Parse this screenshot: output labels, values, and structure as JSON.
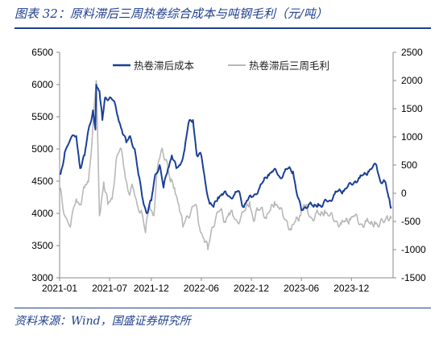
{
  "header": {
    "title": "图表 32：原料滞后三周热卷综合成本与吨钢毛利（元/吨）"
  },
  "footer": {
    "source": "资料来源：Wind，国盛证券研究所"
  },
  "colors": {
    "accent": "#1f3f8f",
    "cost_series": "#1a3f97",
    "margin_series": "#b8b8b8"
  },
  "chart_data": {
    "type": "line",
    "title": "",
    "legend_position": "top",
    "grid": false,
    "x_tick_labels": [
      "2021-01",
      "2021-07",
      "2021-12",
      "2022-06",
      "2022-12",
      "2023-06",
      "2023-12"
    ],
    "x_range": [
      "2021-01",
      "2024-05"
    ],
    "y_left": {
      "range": [
        3000,
        6500
      ],
      "ticks": [
        "6500",
        "6000",
        "5500",
        "5000",
        "4500",
        "4000",
        "3500",
        "3000"
      ]
    },
    "y_right": {
      "range": [
        -1500,
        2500
      ],
      "ticks": [
        "2500",
        "2000",
        "1500",
        "1000",
        "500",
        "0",
        "-500",
        "-1000",
        "-1500"
      ]
    },
    "series": [
      {
        "name": "热卷滞后成本",
        "axis": "left",
        "x": [
          "2021-01-04",
          "2021-01-20",
          "2021-02-10",
          "2021-03-01",
          "2021-03-15",
          "2021-04-01",
          "2021-04-15",
          "2021-05-01",
          "2021-05-10",
          "2021-05-13",
          "2021-05-25",
          "2021-06-05",
          "2021-06-15",
          "2021-07-01",
          "2021-07-15",
          "2021-08-01",
          "2021-08-15",
          "2021-09-01",
          "2021-09-15",
          "2021-10-01",
          "2021-10-15",
          "2021-11-01",
          "2021-11-15",
          "2021-12-01",
          "2021-12-15",
          "2022-01-01",
          "2022-01-15",
          "2022-02-01",
          "2022-02-15",
          "2022-03-01",
          "2022-03-15",
          "2022-04-01",
          "2022-04-15",
          "2022-05-01",
          "2022-05-15",
          "2022-06-01",
          "2022-06-15",
          "2022-07-01",
          "2022-07-15",
          "2022-08-01",
          "2022-08-15",
          "2022-09-01",
          "2022-09-15",
          "2022-10-01",
          "2022-10-15",
          "2022-11-01",
          "2022-11-15",
          "2022-12-01",
          "2022-12-15",
          "2023-01-01",
          "2023-01-15",
          "2023-02-01",
          "2023-02-15",
          "2023-03-01",
          "2023-03-15",
          "2023-04-01",
          "2023-04-15",
          "2023-05-01",
          "2023-05-15",
          "2023-06-01",
          "2023-06-15",
          "2023-07-01",
          "2023-07-15",
          "2023-08-01",
          "2023-08-15",
          "2023-09-01",
          "2023-09-15",
          "2023-10-01",
          "2023-10-15",
          "2023-11-01",
          "2023-11-15",
          "2023-12-01",
          "2023-12-15",
          "2024-01-01",
          "2024-01-15",
          "2024-02-01",
          "2024-02-15",
          "2024-03-01",
          "2024-03-15",
          "2024-04-01",
          "2024-04-15",
          "2024-04-25"
        ],
        "values": [
          4600,
          4950,
          5150,
          5200,
          4700,
          4900,
          5300,
          5600,
          5300,
          6000,
          5900,
          5450,
          5800,
          5800,
          5750,
          5500,
          5300,
          5100,
          5200,
          5000,
          4600,
          4200,
          4000,
          4200,
          4600,
          4750,
          4400,
          4700,
          4900,
          4700,
          4750,
          5000,
          5400,
          5450,
          4900,
          4900,
          4500,
          4150,
          4100,
          4250,
          4300,
          4300,
          4250,
          4300,
          4350,
          4100,
          4200,
          4250,
          4300,
          4400,
          4500,
          4600,
          4650,
          4650,
          4550,
          4650,
          4700,
          4650,
          4300,
          4050,
          4100,
          4150,
          4100,
          4150,
          4100,
          4200,
          4200,
          4300,
          4350,
          4350,
          4400,
          4450,
          4500,
          4550,
          4600,
          4650,
          4700,
          4750,
          4500,
          4500,
          4250,
          4100
        ]
      },
      {
        "name": "热卷滞后三周毛利",
        "axis": "right",
        "x": [
          "2021-01-04",
          "2021-01-20",
          "2021-02-10",
          "2021-03-01",
          "2021-03-15",
          "2021-04-01",
          "2021-04-15",
          "2021-05-01",
          "2021-05-13",
          "2021-05-25",
          "2021-06-10",
          "2021-06-25",
          "2021-07-10",
          "2021-07-25",
          "2021-08-10",
          "2021-08-25",
          "2021-09-10",
          "2021-09-25",
          "2021-10-10",
          "2021-10-25",
          "2021-11-10",
          "2021-11-25",
          "2021-12-10",
          "2021-12-25",
          "2022-01-10",
          "2022-01-25",
          "2022-02-10",
          "2022-02-25",
          "2022-03-10",
          "2022-03-25",
          "2022-04-10",
          "2022-04-25",
          "2022-05-10",
          "2022-05-25",
          "2022-06-10",
          "2022-06-25",
          "2022-07-10",
          "2022-07-25",
          "2022-08-10",
          "2022-08-25",
          "2022-09-10",
          "2022-09-25",
          "2022-10-10",
          "2022-10-25",
          "2022-11-10",
          "2022-11-25",
          "2022-12-10",
          "2022-12-25",
          "2023-01-10",
          "2023-01-25",
          "2023-02-10",
          "2023-02-25",
          "2023-03-10",
          "2023-03-25",
          "2023-04-10",
          "2023-04-25",
          "2023-05-10",
          "2023-05-25",
          "2023-06-10",
          "2023-06-25",
          "2023-07-10",
          "2023-07-25",
          "2023-08-10",
          "2023-08-25",
          "2023-09-10",
          "2023-09-25",
          "2023-10-10",
          "2023-10-25",
          "2023-11-10",
          "2023-11-25",
          "2023-12-10",
          "2023-12-25",
          "2024-01-10",
          "2024-01-25",
          "2024-02-10",
          "2024-02-25",
          "2024-03-10",
          "2024-03-25",
          "2024-04-10",
          "2024-04-25"
        ],
        "values": [
          100,
          -400,
          -600,
          -100,
          -200,
          100,
          200,
          1200,
          2000,
          -400,
          200,
          -200,
          -100,
          600,
          800,
          400,
          0,
          100,
          -200,
          -300,
          -700,
          -200,
          -400,
          500,
          800,
          600,
          200,
          100,
          -200,
          -600,
          -400,
          -300,
          -200,
          -600,
          -800,
          -1000,
          -600,
          -400,
          -300,
          -500,
          -350,
          -400,
          -500,
          -400,
          -300,
          -150,
          -500,
          -300,
          -250,
          -450,
          -300,
          -150,
          -250,
          -400,
          -500,
          -650,
          -500,
          -400,
          -200,
          -350,
          -450,
          -350,
          -400,
          -300,
          -400,
          -450,
          -500,
          -550,
          -500,
          -450,
          -400,
          -500,
          -550,
          -500,
          -550,
          -500,
          -600,
          -500,
          -400,
          -450
        ]
      }
    ]
  }
}
